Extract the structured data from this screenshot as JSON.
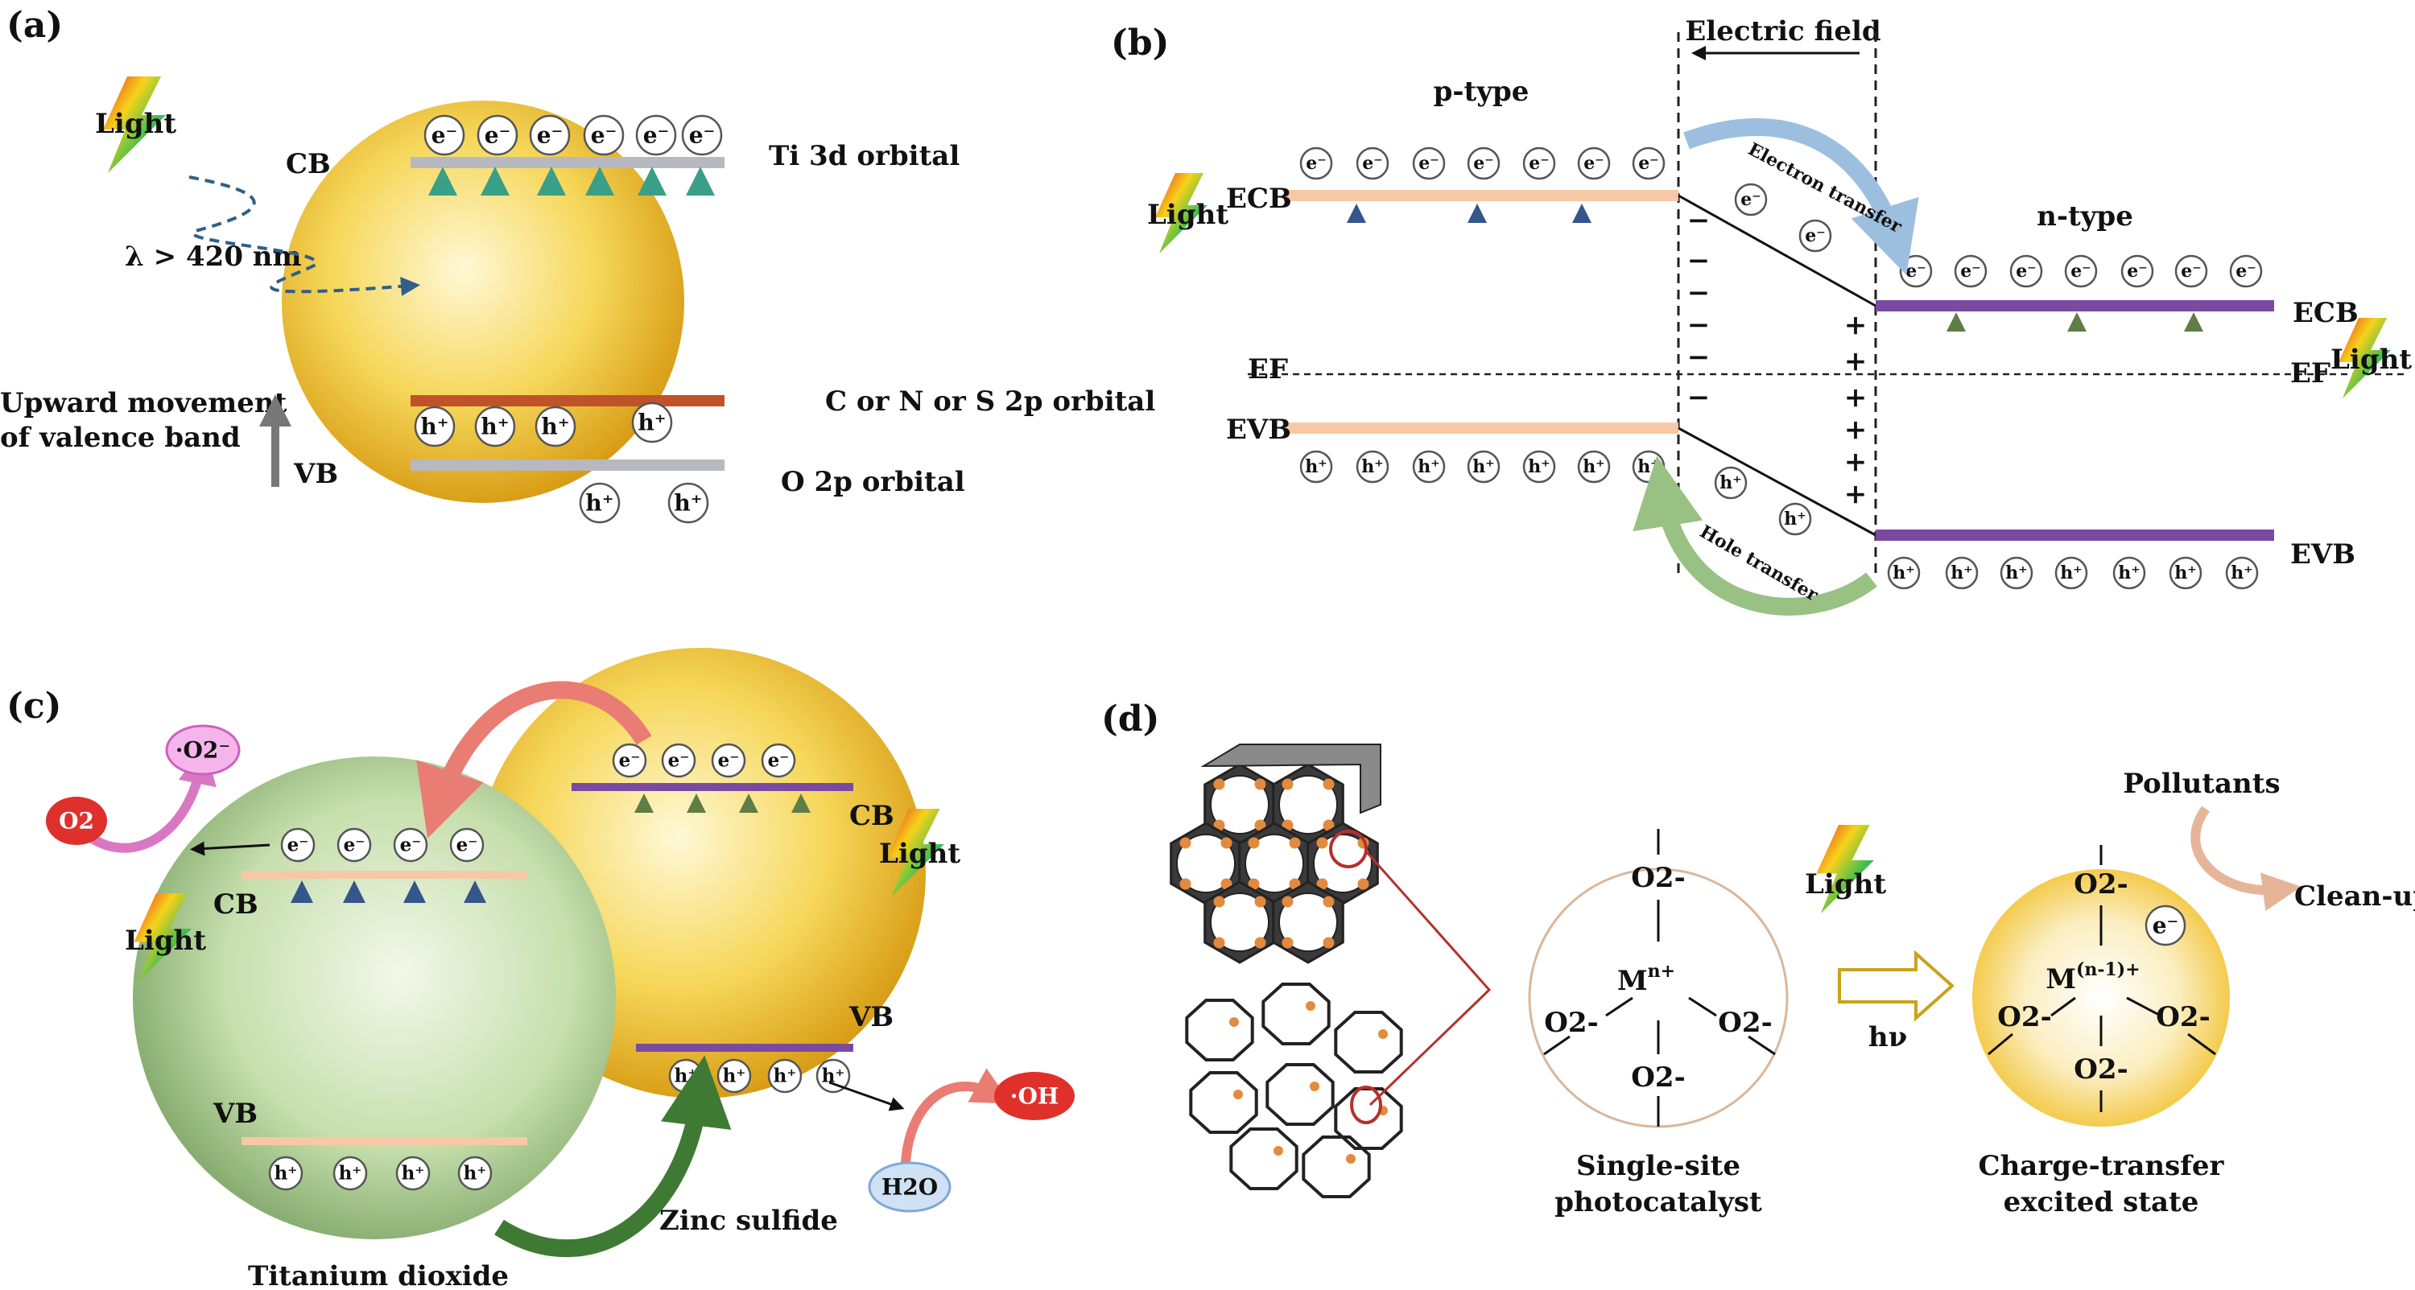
{
  "panel_a": {
    "label": "(a)",
    "light": "Light",
    "cb": "CB",
    "vb": "VB",
    "wavelength": "λ > 420 nm",
    "ti3d": "Ti 3d orbital",
    "dopant": "C or N or S 2p orbital",
    "o2p": "O 2p orbital",
    "upward_1": "Upward movement",
    "upward_2": "of valence band",
    "electron": "e⁻",
    "hole": "h⁺"
  },
  "panel_b": {
    "label": "(b)",
    "electric_field": "Electric field",
    "ptype": "p-type",
    "ntype": "n-type",
    "ecb": "ECB",
    "evb": "EVB",
    "ef": "EF",
    "light_left": "Light",
    "light_right": "Light",
    "electron_transfer": "Electron transfer",
    "hole_transfer": "Hole transfer",
    "minus": "−",
    "plus": "+",
    "electron": "e⁻",
    "hole": "h⁺"
  },
  "panel_c": {
    "label": "(c)",
    "o2": "O2",
    "superoxide": "·O2⁻",
    "oh": "·OH",
    "h2o": "H2O",
    "cb": "CB",
    "vb": "VB",
    "light_left": "Light",
    "light_right": "Light",
    "tio2": "Titanium dioxide",
    "zns": "Zinc sulfide",
    "electron": "e⁻",
    "hole": "h⁺"
  },
  "panel_d": {
    "label": "(d)",
    "o2m": "O2-",
    "metal": "M",
    "metal_charge": "n+",
    "metal_charge_excited": "(n-1)+",
    "single_site_1": "Single-site",
    "single_site_2": "photocatalyst",
    "light": "Light",
    "hv": "hν",
    "pollutants": "Pollutants",
    "cleanup": "Clean-up",
    "excited_1": "Charge-transfer",
    "excited_2": "excited state",
    "electron": "e⁻"
  },
  "colors": {
    "yellow_sphere": "#f3c531",
    "green_sphere": "#b7d59a",
    "purple_band": "#7a4aa0",
    "orange_band": "#f7c8a6",
    "arrow_blue": "#3f5f8d",
    "arrow_green": "#6f8f57"
  }
}
